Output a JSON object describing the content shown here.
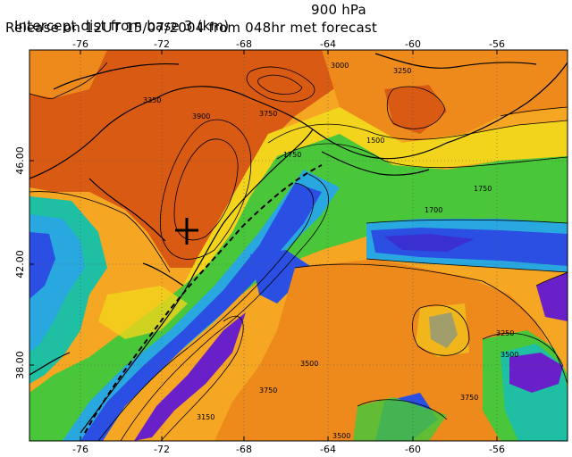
{
  "title": {
    "line1": "Intercept dist from base 3 (km)",
    "level": "900 hPa",
    "line2": "Release on 12UT 15/07/2004 from 048hr met forecast"
  },
  "axes": {
    "top_ticks": [
      "-76",
      "-72",
      "-68",
      "-64",
      "-60",
      "-56"
    ],
    "bottom_ticks": [
      "-76",
      "-72",
      "-68",
      "-64",
      "-60",
      "-56"
    ],
    "left_ticks": [
      "46.00",
      "42.00",
      "38.00"
    ]
  },
  "contour_labels": [
    {
      "text": "3000"
    },
    {
      "text": "3250"
    },
    {
      "text": "3750"
    },
    {
      "text": "3900"
    },
    {
      "text": "1750"
    },
    {
      "text": "1500"
    },
    {
      "text": "1750"
    },
    {
      "text": "1700"
    },
    {
      "text": "3250"
    },
    {
      "text": "3750"
    },
    {
      "text": "3500"
    },
    {
      "text": "3750"
    },
    {
      "text": "3500"
    },
    {
      "text": "3350"
    },
    {
      "text": "3500"
    },
    {
      "text": "3150"
    }
  ],
  "colors": {
    "dark_orange": "#d95a12",
    "orange": "#ee8a1c",
    "light_orange": "#f5a623",
    "yellow": "#f2d41c",
    "green": "#49c639",
    "teal": "#1ebfa2",
    "cyan": "#29a8e0",
    "blue": "#2a4fe2",
    "purple": "#6a20c8"
  },
  "marker": "base-cross"
}
